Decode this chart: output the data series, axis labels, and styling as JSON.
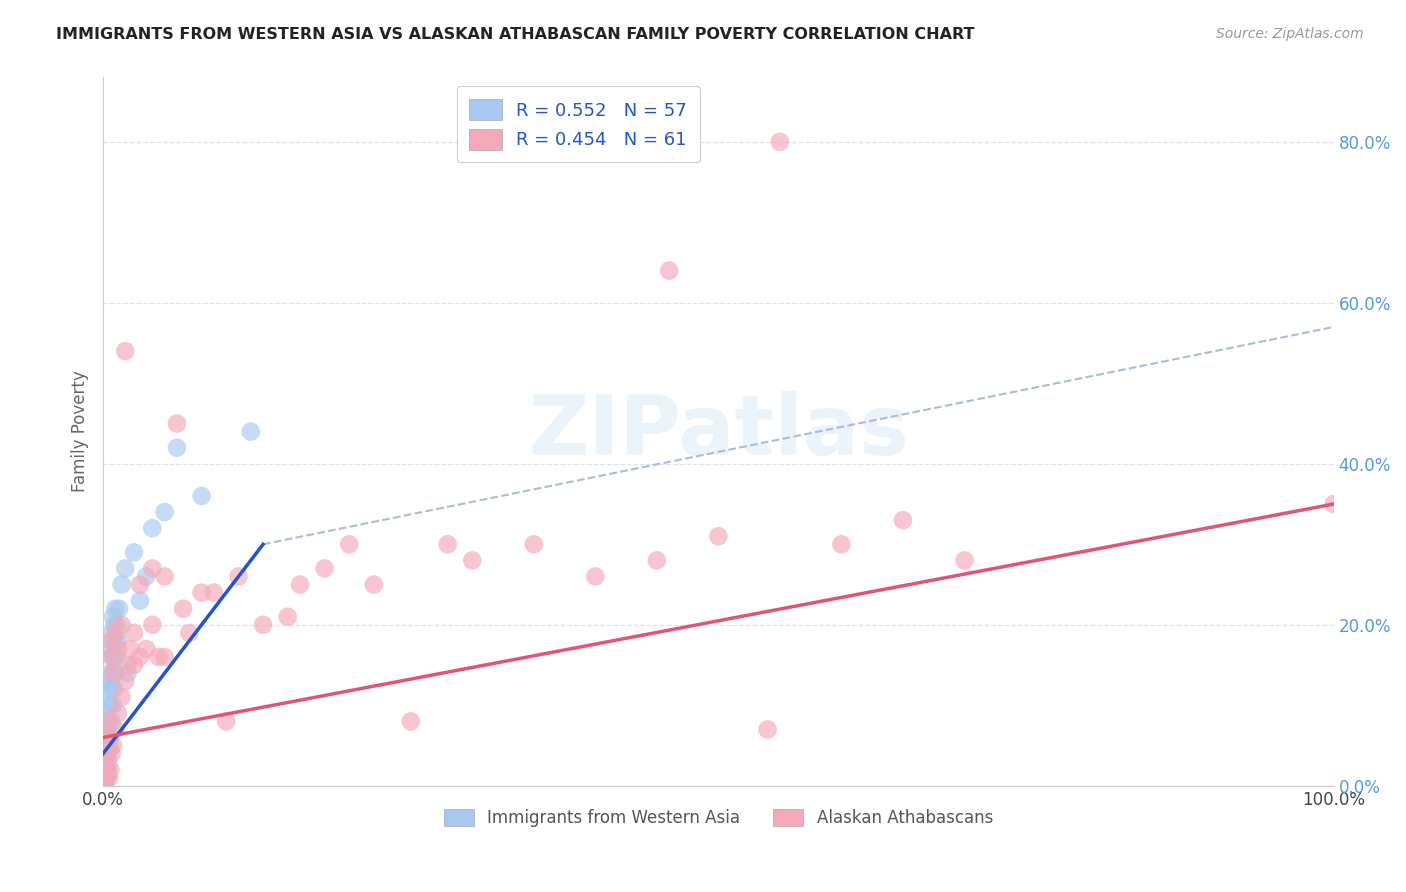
{
  "title": "IMMIGRANTS FROM WESTERN ASIA VS ALASKAN ATHABASCAN FAMILY POVERTY CORRELATION CHART",
  "source": "Source: ZipAtlas.com",
  "ylabel": "Family Poverty",
  "xlim": [
    0,
    1.0
  ],
  "ylim": [
    0,
    0.88
  ],
  "xtick_labels": [
    "0.0%",
    "100.0%"
  ],
  "ytick_labels": [
    "0.0%",
    "20.0%",
    "40.0%",
    "60.0%",
    "80.0%"
  ],
  "ytick_values": [
    0.0,
    0.2,
    0.4,
    0.6,
    0.8
  ],
  "xtick_values": [
    0.0,
    1.0
  ],
  "watermark_text": "ZIPatlas",
  "blue_color": "#a8c8f0",
  "pink_color": "#f4a8b8",
  "blue_line_color": "#2255cc",
  "pink_line_color": "#e05575",
  "dash_line_color": "#aabbdd",
  "grid_color": "#e0e0e8",
  "background_color": "#ffffff",
  "R_blue": 0.552,
  "N_blue": 57,
  "R_pink": 0.454,
  "N_pink": 61,
  "legend1_label1": "R = 0.552   N = 57",
  "legend1_label2": "R = 0.454   N = 61",
  "legend2_label1": "Immigrants from Western Asia",
  "legend2_label2": "Alaskan Athabascans",
  "blue_scatter": [
    [
      0.0005,
      0.005
    ],
    [
      0.001,
      0.01
    ],
    [
      0.001,
      0.02
    ],
    [
      0.001,
      0.03
    ],
    [
      0.001,
      0.04
    ],
    [
      0.002,
      0.005
    ],
    [
      0.002,
      0.01
    ],
    [
      0.002,
      0.02
    ],
    [
      0.002,
      0.03
    ],
    [
      0.002,
      0.04
    ],
    [
      0.002,
      0.06
    ],
    [
      0.003,
      0.01
    ],
    [
      0.003,
      0.02
    ],
    [
      0.003,
      0.04
    ],
    [
      0.003,
      0.06
    ],
    [
      0.003,
      0.08
    ],
    [
      0.004,
      0.02
    ],
    [
      0.004,
      0.04
    ],
    [
      0.004,
      0.07
    ],
    [
      0.004,
      0.1
    ],
    [
      0.005,
      0.05
    ],
    [
      0.005,
      0.08
    ],
    [
      0.005,
      0.12
    ],
    [
      0.005,
      0.14
    ],
    [
      0.006,
      0.06
    ],
    [
      0.006,
      0.1
    ],
    [
      0.006,
      0.13
    ],
    [
      0.006,
      0.17
    ],
    [
      0.007,
      0.08
    ],
    [
      0.007,
      0.12
    ],
    [
      0.007,
      0.16
    ],
    [
      0.007,
      0.19
    ],
    [
      0.008,
      0.1
    ],
    [
      0.008,
      0.14
    ],
    [
      0.008,
      0.18
    ],
    [
      0.008,
      0.21
    ],
    [
      0.009,
      0.12
    ],
    [
      0.009,
      0.16
    ],
    [
      0.009,
      0.2
    ],
    [
      0.01,
      0.14
    ],
    [
      0.01,
      0.18
    ],
    [
      0.01,
      0.22
    ],
    [
      0.011,
      0.16
    ],
    [
      0.011,
      0.2
    ],
    [
      0.012,
      0.18
    ],
    [
      0.013,
      0.22
    ],
    [
      0.015,
      0.25
    ],
    [
      0.018,
      0.27
    ],
    [
      0.02,
      0.14
    ],
    [
      0.025,
      0.29
    ],
    [
      0.03,
      0.23
    ],
    [
      0.035,
      0.26
    ],
    [
      0.04,
      0.32
    ],
    [
      0.05,
      0.34
    ],
    [
      0.06,
      0.42
    ],
    [
      0.08,
      0.36
    ],
    [
      0.12,
      0.44
    ]
  ],
  "pink_scatter": [
    [
      0.001,
      0.005
    ],
    [
      0.002,
      0.01
    ],
    [
      0.002,
      0.055
    ],
    [
      0.003,
      0.02
    ],
    [
      0.003,
      0.08
    ],
    [
      0.004,
      0.03
    ],
    [
      0.005,
      0.01
    ],
    [
      0.005,
      0.06
    ],
    [
      0.006,
      0.02
    ],
    [
      0.006,
      0.18
    ],
    [
      0.007,
      0.04
    ],
    [
      0.007,
      0.16
    ],
    [
      0.008,
      0.05
    ],
    [
      0.008,
      0.14
    ],
    [
      0.01,
      0.07
    ],
    [
      0.01,
      0.19
    ],
    [
      0.012,
      0.09
    ],
    [
      0.012,
      0.17
    ],
    [
      0.015,
      0.11
    ],
    [
      0.015,
      0.2
    ],
    [
      0.018,
      0.13
    ],
    [
      0.018,
      0.54
    ],
    [
      0.02,
      0.15
    ],
    [
      0.022,
      0.17
    ],
    [
      0.025,
      0.15
    ],
    [
      0.025,
      0.19
    ],
    [
      0.03,
      0.16
    ],
    [
      0.03,
      0.25
    ],
    [
      0.035,
      0.17
    ],
    [
      0.04,
      0.2
    ],
    [
      0.04,
      0.27
    ],
    [
      0.045,
      0.16
    ],
    [
      0.05,
      0.16
    ],
    [
      0.05,
      0.26
    ],
    [
      0.06,
      0.45
    ],
    [
      0.065,
      0.22
    ],
    [
      0.07,
      0.19
    ],
    [
      0.08,
      0.24
    ],
    [
      0.09,
      0.24
    ],
    [
      0.1,
      0.08
    ],
    [
      0.11,
      0.26
    ],
    [
      0.13,
      0.2
    ],
    [
      0.15,
      0.21
    ],
    [
      0.16,
      0.25
    ],
    [
      0.18,
      0.27
    ],
    [
      0.2,
      0.3
    ],
    [
      0.22,
      0.25
    ],
    [
      0.25,
      0.08
    ],
    [
      0.28,
      0.3
    ],
    [
      0.3,
      0.28
    ],
    [
      0.35,
      0.3
    ],
    [
      0.4,
      0.26
    ],
    [
      0.45,
      0.28
    ],
    [
      0.46,
      0.64
    ],
    [
      0.5,
      0.31
    ],
    [
      0.54,
      0.07
    ],
    [
      0.55,
      0.8
    ],
    [
      0.6,
      0.3
    ],
    [
      0.65,
      0.33
    ],
    [
      0.7,
      0.28
    ],
    [
      1.0,
      0.35
    ]
  ],
  "blue_line_x": [
    0.0,
    0.13
  ],
  "blue_line_y": [
    0.04,
    0.3
  ],
  "dash_line_x": [
    0.13,
    1.0
  ],
  "dash_line_y": [
    0.3,
    0.57
  ],
  "pink_line_x": [
    0.0,
    1.0
  ],
  "pink_line_y": [
    0.06,
    0.35
  ]
}
